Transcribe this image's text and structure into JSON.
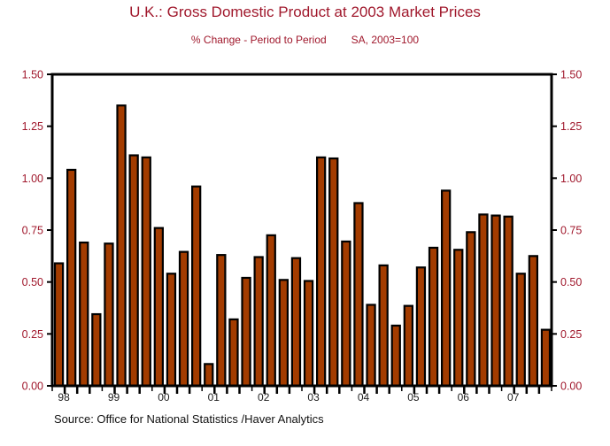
{
  "chart_data": {
    "type": "bar",
    "title": "U.K.: Gross Domestic Product at 2003 Market Prices",
    "subtitle_left": "% Change - Period to Period",
    "subtitle_right": "SA, 2003=100",
    "source": "Source:  Office for National Statistics /Haver Analytics",
    "xlabel": "",
    "ylabel": "",
    "ylim": [
      0,
      1.5
    ],
    "yticks": [
      "0.00",
      "0.25",
      "0.50",
      "0.75",
      "1.00",
      "1.25",
      "1.50"
    ],
    "ytick_values": [
      0,
      0.25,
      0.5,
      0.75,
      1.0,
      1.25,
      1.5
    ],
    "year_labels": [
      "98",
      "99",
      "00",
      "01",
      "02",
      "03",
      "04",
      "05",
      "06",
      "07"
    ],
    "bar_color": "#a33c00",
    "text_color": "#a0182c",
    "categories": [
      "1998Q1",
      "1998Q2",
      "1998Q3",
      "1998Q4",
      "1999Q1",
      "1999Q2",
      "1999Q3",
      "1999Q4",
      "2000Q1",
      "2000Q2",
      "2000Q3",
      "2000Q4",
      "2001Q1",
      "2001Q2",
      "2001Q3",
      "2001Q4",
      "2002Q1",
      "2002Q2",
      "2002Q3",
      "2002Q4",
      "2003Q1",
      "2003Q2",
      "2003Q3",
      "2003Q4",
      "2004Q1",
      "2004Q2",
      "2004Q3",
      "2004Q4",
      "2005Q1",
      "2005Q2",
      "2005Q3",
      "2005Q4",
      "2006Q1",
      "2006Q2",
      "2006Q3",
      "2006Q4",
      "2007Q1",
      "2007Q2",
      "2007Q3",
      "2007Q4"
    ],
    "values": [
      0.59,
      1.04,
      0.69,
      0.345,
      0.685,
      1.35,
      1.11,
      1.1,
      0.76,
      0.54,
      0.645,
      0.96,
      0.105,
      0.63,
      0.32,
      0.52,
      0.62,
      0.725,
      0.51,
      0.615,
      0.505,
      1.1,
      1.095,
      0.695,
      0.88,
      0.39,
      0.58,
      0.29,
      0.385,
      0.57,
      0.665,
      0.94,
      0.655,
      0.74,
      0.825,
      0.82,
      0.815,
      0.54,
      0.625,
      0.27
    ],
    "grid": false,
    "legend": "none"
  }
}
